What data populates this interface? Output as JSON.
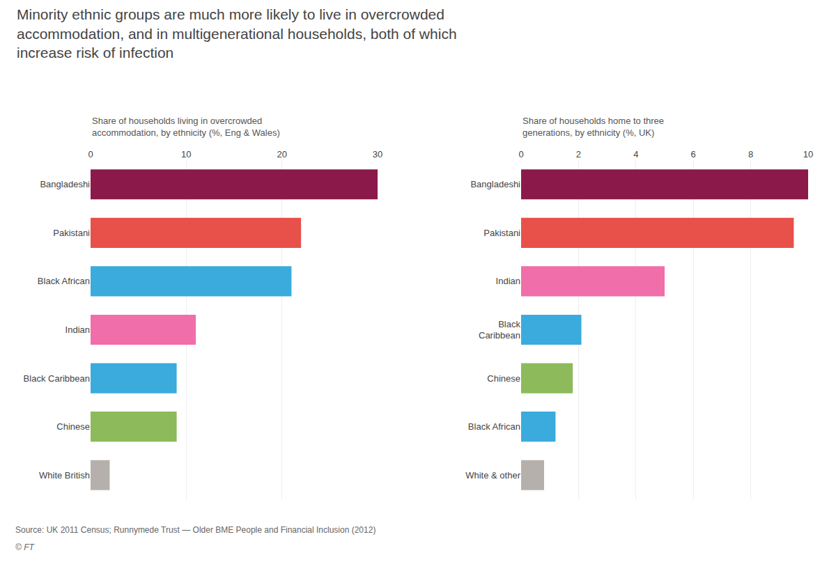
{
  "title": "Minority ethnic groups are much more likely to live in overcrowded\naccommodation, and in multigenerational households, both of which\nincrease risk of infection",
  "annotations": [
    "Source: UK 2011 Census; Runnymede Trust — Older BME People and Financial Inclusion (2012)",
    "© FT"
  ],
  "chart_data": [
    {
      "type": "bar",
      "orientation": "horizontal",
      "subtitle": "Share of households living in overcrowded\naccommodation, by ethnicity (%, Eng & Wales)",
      "categories": [
        "Bangladeshi",
        "Pakistani",
        "Black African",
        "Indian",
        "Black Caribbean",
        "Chinese",
        "White British"
      ],
      "values": [
        30.0,
        22.0,
        21.0,
        11.0,
        9.0,
        9.0,
        2.0
      ],
      "colors": [
        "#8b1a4a",
        "#e8504a",
        "#3aabdc",
        "#f06eaa",
        "#3aabdc",
        "#8dba5a",
        "#b5b0ab"
      ],
      "xlim": [
        0,
        30
      ],
      "xticks": [
        0,
        10,
        20,
        30
      ],
      "grid": true
    },
    {
      "type": "bar",
      "orientation": "horizontal",
      "subtitle": "Share of households home to three\ngenerations, by ethnicity (%, UK)",
      "categories": [
        "Bangladeshi",
        "Pakistani",
        "Indian",
        "Black\nCaribbean",
        "Chinese",
        "Black African",
        "White & other"
      ],
      "values": [
        10.0,
        9.5,
        5.0,
        2.1,
        1.8,
        1.2,
        0.8
      ],
      "colors": [
        "#8b1a4a",
        "#e8504a",
        "#f06eaa",
        "#3aabdc",
        "#8dba5a",
        "#3aabdc",
        "#b5b0ab"
      ],
      "xlim": [
        0,
        10
      ],
      "xticks": [
        0,
        2,
        4,
        6,
        8,
        10
      ],
      "grid": true
    }
  ]
}
